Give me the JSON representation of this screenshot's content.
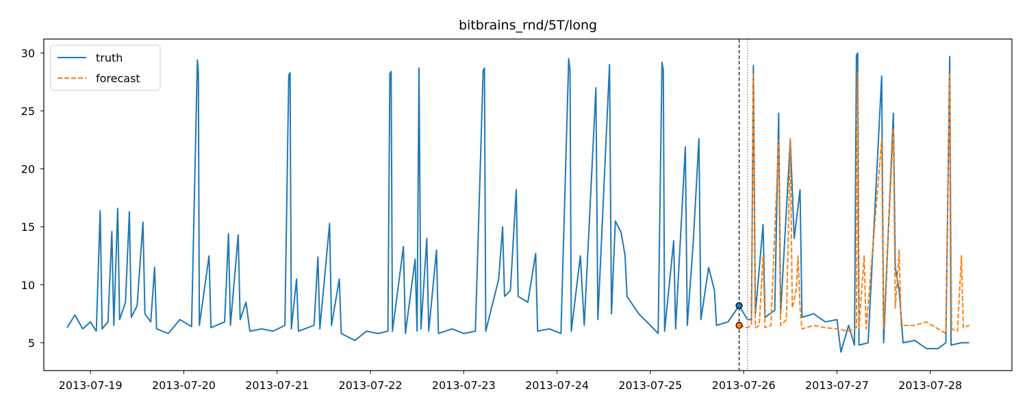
{
  "chart_data": {
    "type": "line",
    "title": "bitbrains_rnd/5T/long",
    "xlabel": "",
    "ylabel": "",
    "x_ticks": [
      "2013-07-19",
      "2013-07-20",
      "2013-07-21",
      "2013-07-22",
      "2013-07-23",
      "2013-07-24",
      "2013-07-25",
      "2013-07-26",
      "2013-07-27",
      "2013-07-28"
    ],
    "y_ticks": [
      5,
      10,
      15,
      20,
      25,
      30
    ],
    "xlim": [
      "2013-07-18 12:00",
      "2013-07-28 21:00"
    ],
    "ylim": [
      2.6,
      31.2
    ],
    "grid": false,
    "legend_position": "top-left",
    "forecast_start": "2013-07-25 22:50",
    "context_marker": "2013-07-26 01:00",
    "start_markers": [
      8.2,
      6.5
    ],
    "colors": {
      "truth": "#1f77b4",
      "forecast": "#ff7f0e",
      "vline": "#000000",
      "marker_line": "#999999"
    },
    "series": [
      {
        "name": "truth",
        "style": "solid",
        "points": [
          [
            "2013-07-18 18:00",
            6.3
          ],
          [
            "2013-07-18 20:00",
            7.4
          ],
          [
            "2013-07-18 22:00",
            6.2
          ],
          [
            "2013-07-19 00:00",
            6.8
          ],
          [
            "2013-07-19 01:30",
            6.0
          ],
          [
            "2013-07-19 02:30",
            16.4
          ],
          [
            "2013-07-19 03:00",
            6.2
          ],
          [
            "2013-07-19 04:30",
            6.8
          ],
          [
            "2013-07-19 05:30",
            14.6
          ],
          [
            "2013-07-19 06:00",
            6.5
          ],
          [
            "2013-07-19 07:00",
            16.6
          ],
          [
            "2013-07-19 07:30",
            7.0
          ],
          [
            "2013-07-19 09:00",
            8.5
          ],
          [
            "2013-07-19 10:00",
            16.3
          ],
          [
            "2013-07-19 10:30",
            7.2
          ],
          [
            "2013-07-19 12:00",
            8.2
          ],
          [
            "2013-07-19 13:30",
            15.4
          ],
          [
            "2013-07-19 14:00",
            7.5
          ],
          [
            "2013-07-19 15:30",
            6.8
          ],
          [
            "2013-07-19 16:30",
            11.5
          ],
          [
            "2013-07-19 17:00",
            6.2
          ],
          [
            "2013-07-19 20:00",
            5.8
          ],
          [
            "2013-07-19 23:00",
            7.0
          ],
          [
            "2013-07-20 02:00",
            6.4
          ],
          [
            "2013-07-20 03:30",
            29.4
          ],
          [
            "2013-07-20 03:45",
            28.3
          ],
          [
            "2013-07-20 04:00",
            6.5
          ],
          [
            "2013-07-20 06:30",
            12.5
          ],
          [
            "2013-07-20 07:00",
            6.3
          ],
          [
            "2013-07-20 10:30",
            6.8
          ],
          [
            "2013-07-20 11:30",
            14.4
          ],
          [
            "2013-07-20 12:00",
            6.5
          ],
          [
            "2013-07-20 14:00",
            14.3
          ],
          [
            "2013-07-20 14:30",
            7.0
          ],
          [
            "2013-07-20 16:00",
            8.5
          ],
          [
            "2013-07-20 17:00",
            6.0
          ],
          [
            "2013-07-20 20:00",
            6.2
          ],
          [
            "2013-07-20 23:00",
            6.0
          ],
          [
            "2013-07-21 02:00",
            6.5
          ],
          [
            "2013-07-21 03:00",
            28.1
          ],
          [
            "2013-07-21 03:20",
            28.3
          ],
          [
            "2013-07-21 03:40",
            6.2
          ],
          [
            "2013-07-21 05:00",
            10.5
          ],
          [
            "2013-07-21 05:30",
            6.0
          ],
          [
            "2013-07-21 09:30",
            6.5
          ],
          [
            "2013-07-21 10:30",
            12.4
          ],
          [
            "2013-07-21 11:00",
            6.2
          ],
          [
            "2013-07-21 13:30",
            15.3
          ],
          [
            "2013-07-21 14:00",
            6.5
          ],
          [
            "2013-07-21 16:00",
            10.5
          ],
          [
            "2013-07-21 16:30",
            5.8
          ],
          [
            "2013-07-21 20:00",
            5.2
          ],
          [
            "2013-07-21 23:00",
            6.0
          ],
          [
            "2013-07-22 02:00",
            5.8
          ],
          [
            "2013-07-22 04:30",
            6.0
          ],
          [
            "2013-07-22 05:00",
            28.2
          ],
          [
            "2013-07-22 05:20",
            28.4
          ],
          [
            "2013-07-22 05:40",
            6.0
          ],
          [
            "2013-07-22 08:30",
            13.3
          ],
          [
            "2013-07-22 09:00",
            5.8
          ],
          [
            "2013-07-22 11:30",
            12.2
          ],
          [
            "2013-07-22 12:00",
            6.0
          ],
          [
            "2013-07-22 12:30",
            28.7
          ],
          [
            "2013-07-22 13:00",
            6.2
          ],
          [
            "2013-07-22 14:30",
            14.0
          ],
          [
            "2013-07-22 15:00",
            6.0
          ],
          [
            "2013-07-22 17:00",
            13.0
          ],
          [
            "2013-07-22 17:30",
            5.8
          ],
          [
            "2013-07-22 21:00",
            6.2
          ],
          [
            "2013-07-23 00:00",
            5.8
          ],
          [
            "2013-07-23 03:00",
            6.0
          ],
          [
            "2013-07-23 05:00",
            28.5
          ],
          [
            "2013-07-23 05:20",
            28.7
          ],
          [
            "2013-07-23 05:40",
            6.0
          ],
          [
            "2013-07-23 09:00",
            10.5
          ],
          [
            "2013-07-23 10:00",
            15.0
          ],
          [
            "2013-07-23 10:30",
            9.0
          ],
          [
            "2013-07-23 12:00",
            9.5
          ],
          [
            "2013-07-23 13:30",
            18.2
          ],
          [
            "2013-07-23 14:00",
            9.0
          ],
          [
            "2013-07-23 16:30",
            8.5
          ],
          [
            "2013-07-23 18:30",
            12.7
          ],
          [
            "2013-07-23 19:00",
            6.0
          ],
          [
            "2013-07-23 22:00",
            6.2
          ],
          [
            "2013-07-24 01:00",
            5.8
          ],
          [
            "2013-07-24 03:00",
            29.5
          ],
          [
            "2013-07-24 03:20",
            28.5
          ],
          [
            "2013-07-24 03:40",
            6.0
          ],
          [
            "2013-07-24 06:00",
            12.5
          ],
          [
            "2013-07-24 07:00",
            6.5
          ],
          [
            "2013-07-24 10:00",
            27.0
          ],
          [
            "2013-07-24 10:30",
            7.0
          ],
          [
            "2013-07-24 13:30",
            29.0
          ],
          [
            "2013-07-24 14:00",
            7.5
          ],
          [
            "2013-07-24 15:00",
            15.5
          ],
          [
            "2013-07-24 16:30",
            14.5
          ],
          [
            "2013-07-24 17:30",
            12.5
          ],
          [
            "2013-07-24 18:00",
            9.0
          ],
          [
            "2013-07-24 21:00",
            7.5
          ],
          [
            "2013-07-25 00:00",
            6.5
          ],
          [
            "2013-07-25 02:00",
            5.8
          ],
          [
            "2013-07-25 03:00",
            29.2
          ],
          [
            "2013-07-25 03:20",
            28.5
          ],
          [
            "2013-07-25 03:40",
            6.0
          ],
          [
            "2013-07-25 06:00",
            13.8
          ],
          [
            "2013-07-25 06:30",
            6.2
          ],
          [
            "2013-07-25 09:00",
            21.9
          ],
          [
            "2013-07-25 09:30",
            6.5
          ],
          [
            "2013-07-25 11:00",
            13.5
          ],
          [
            "2013-07-25 12:30",
            22.6
          ],
          [
            "2013-07-25 13:00",
            7.0
          ],
          [
            "2013-07-25 15:00",
            11.5
          ],
          [
            "2013-07-25 16:30",
            9.5
          ],
          [
            "2013-07-25 17:00",
            6.5
          ],
          [
            "2013-07-25 20:00",
            6.8
          ],
          [
            "2013-07-25 22:50",
            8.2
          ],
          [
            "2013-07-26 01:00",
            7.0
          ],
          [
            "2013-07-26 02:00",
            7.0
          ],
          [
            "2013-07-26 02:30",
            28.9
          ],
          [
            "2013-07-26 03:00",
            7.5
          ],
          [
            "2013-07-26 05:00",
            15.2
          ],
          [
            "2013-07-26 05:30",
            7.2
          ],
          [
            "2013-07-26 08:00",
            7.8
          ],
          [
            "2013-07-26 09:00",
            24.8
          ],
          [
            "2013-07-26 09:30",
            7.5
          ],
          [
            "2013-07-26 12:00",
            22.5
          ],
          [
            "2013-07-26 13:00",
            14.0
          ],
          [
            "2013-07-26 14:30",
            18.2
          ],
          [
            "2013-07-26 15:00",
            7.2
          ],
          [
            "2013-07-26 18:00",
            7.5
          ],
          [
            "2013-07-26 21:00",
            6.8
          ],
          [
            "2013-07-27 00:00",
            7.0
          ],
          [
            "2013-07-27 01:00",
            4.2
          ],
          [
            "2013-07-27 03:00",
            6.5
          ],
          [
            "2013-07-27 04:30",
            4.8
          ],
          [
            "2013-07-27 05:00",
            29.8
          ],
          [
            "2013-07-27 05:20",
            30.0
          ],
          [
            "2013-07-27 05:40",
            4.8
          ],
          [
            "2013-07-27 08:00",
            5.0
          ],
          [
            "2013-07-27 11:30",
            28.0
          ],
          [
            "2013-07-27 12:00",
            5.0
          ],
          [
            "2013-07-27 14:30",
            24.8
          ],
          [
            "2013-07-27 15:00",
            11.5
          ],
          [
            "2013-07-27 16:00",
            9.5
          ],
          [
            "2013-07-27 17:00",
            5.0
          ],
          [
            "2013-07-27 20:00",
            5.2
          ],
          [
            "2013-07-27 23:00",
            4.5
          ],
          [
            "2013-07-28 02:00",
            4.5
          ],
          [
            "2013-07-28 04:00",
            5.0
          ],
          [
            "2013-07-28 05:00",
            29.7
          ],
          [
            "2013-07-28 05:20",
            4.8
          ],
          [
            "2013-07-28 08:00",
            5.0
          ],
          [
            "2013-07-28 10:00",
            5.0
          ]
        ]
      },
      {
        "name": "forecast",
        "style": "dashed",
        "points": [
          [
            "2013-07-25 22:50",
            6.5
          ],
          [
            "2013-07-26 01:00",
            6.3
          ],
          [
            "2013-07-26 02:00",
            6.5
          ],
          [
            "2013-07-26 02:30",
            28.3
          ],
          [
            "2013-07-26 03:00",
            6.3
          ],
          [
            "2013-07-26 04:00",
            6.5
          ],
          [
            "2013-07-26 05:00",
            12.5
          ],
          [
            "2013-07-26 05:30",
            6.3
          ],
          [
            "2013-07-26 07:00",
            6.5
          ],
          [
            "2013-07-26 09:00",
            22.5
          ],
          [
            "2013-07-26 09:30",
            6.5
          ],
          [
            "2013-07-26 11:00",
            7.0
          ],
          [
            "2013-07-26 12:00",
            22.6
          ],
          [
            "2013-07-26 12:30",
            8.0
          ],
          [
            "2013-07-26 13:30",
            9.5
          ],
          [
            "2013-07-26 14:00",
            12.5
          ],
          [
            "2013-07-26 14:30",
            8.0
          ],
          [
            "2013-07-26 15:00",
            6.2
          ],
          [
            "2013-07-26 18:00",
            6.5
          ],
          [
            "2013-07-26 21:00",
            6.3
          ],
          [
            "2013-07-27 00:00",
            6.2
          ],
          [
            "2013-07-27 03:00",
            6.0
          ],
          [
            "2013-07-27 05:00",
            6.3
          ],
          [
            "2013-07-27 05:20",
            28.4
          ],
          [
            "2013-07-27 05:40",
            6.3
          ],
          [
            "2013-07-27 07:00",
            12.5
          ],
          [
            "2013-07-27 07:30",
            6.2
          ],
          [
            "2013-07-27 11:30",
            22.5
          ],
          [
            "2013-07-27 12:00",
            6.2
          ],
          [
            "2013-07-27 14:30",
            23.5
          ],
          [
            "2013-07-27 15:00",
            8.0
          ],
          [
            "2013-07-27 16:00",
            13.0
          ],
          [
            "2013-07-27 16:30",
            6.5
          ],
          [
            "2013-07-27 20:00",
            6.5
          ],
          [
            "2013-07-27 23:00",
            6.8
          ],
          [
            "2013-07-28 02:00",
            6.2
          ],
          [
            "2013-07-28 04:00",
            5.8
          ],
          [
            "2013-07-28 05:00",
            28.3
          ],
          [
            "2013-07-28 05:30",
            6.2
          ],
          [
            "2013-07-28 07:00",
            6.0
          ],
          [
            "2013-07-28 08:00",
            12.5
          ],
          [
            "2013-07-28 08:30",
            6.3
          ],
          [
            "2013-07-28 10:00",
            6.5
          ]
        ]
      }
    ]
  }
}
